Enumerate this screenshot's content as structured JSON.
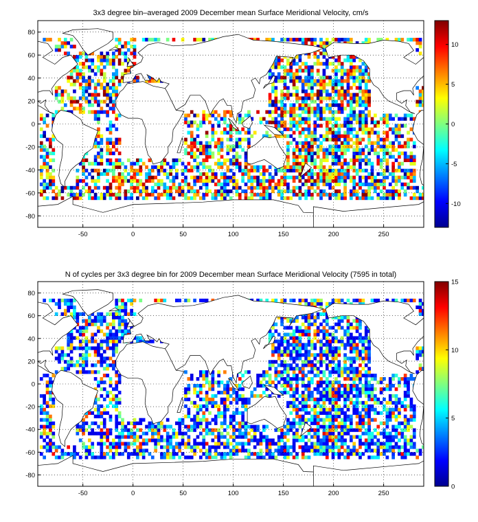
{
  "maps": [
    {
      "title": "3x3 degree bin–averaged 2009 December mean Surface Meridional Velocity, cm/s",
      "x_ticks": [
        "-50",
        "0",
        "50",
        "100",
        "150",
        "200",
        "250"
      ],
      "y_ticks": [
        "80",
        "60",
        "40",
        "20",
        "0",
        "-20",
        "-40",
        "-60",
        "-80"
      ],
      "colorbar_ticks": [
        "10",
        "5",
        "0",
        "-5",
        "-10"
      ]
    },
    {
      "title": "N of cycles per 3x3 degree bin for 2009 December mean Surface Meridional Velocity (7595 in total)",
      "x_ticks": [
        "-50",
        "0",
        "50",
        "100",
        "150",
        "200",
        "250"
      ],
      "y_ticks": [
        "80",
        "60",
        "40",
        "20",
        "0",
        "-20",
        "-40",
        "-60",
        "-80"
      ],
      "colorbar_ticks": [
        "15",
        "10",
        "5",
        "0"
      ]
    }
  ],
  "chart_data": [
    {
      "type": "heatmap",
      "title": "3x3 degree bin–averaged 2009 December mean Surface Meridional Velocity, cm/s",
      "xlim": [
        -95,
        290
      ],
      "ylim": [
        -90,
        90
      ],
      "clim": [
        -13,
        13
      ],
      "grid": true,
      "colormap": "jet",
      "units": "cm/s",
      "colorbar_ticks": [
        10,
        5,
        0,
        -5,
        -10
      ]
    },
    {
      "type": "heatmap",
      "title": "N of cycles per 3x3 degree bin for 2009 December mean Surface Meridional Velocity (7595 in total)",
      "xlim": [
        -95,
        290
      ],
      "ylim": [
        -90,
        90
      ],
      "clim": [
        0,
        15
      ],
      "grid": true,
      "colormap": "jet",
      "total_cycles": 7595,
      "colorbar_ticks": [
        15,
        10,
        5,
        0
      ]
    }
  ]
}
